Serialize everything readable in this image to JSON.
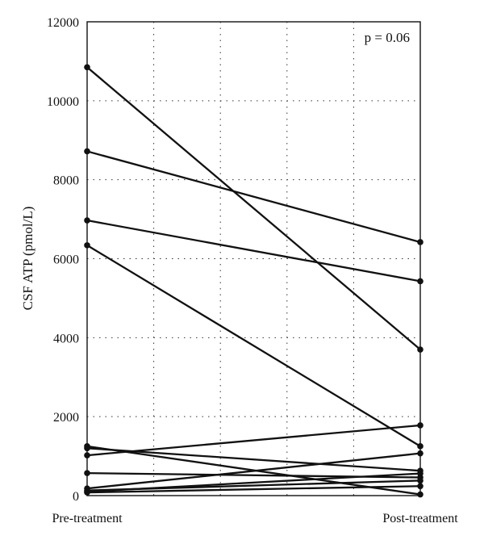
{
  "chart_data": {
    "type": "line",
    "annotation": "p = 0.06",
    "xlabel": "",
    "ylabel": "CSF ATP (pmol/L)",
    "categories": [
      "Pre-treatment",
      "Post-treatment"
    ],
    "ylim": [
      0,
      12000
    ],
    "yticks": [
      0,
      2000,
      4000,
      6000,
      8000,
      10000,
      12000
    ],
    "grid": true,
    "series": [
      {
        "values": [
          10850,
          3700
        ]
      },
      {
        "values": [
          8720,
          6420
        ]
      },
      {
        "values": [
          6970,
          5430
        ]
      },
      {
        "values": [
          6340,
          1250
        ]
      },
      {
        "values": [
          1250,
          30
        ]
      },
      {
        "values": [
          1200,
          630
        ]
      },
      {
        "values": [
          1020,
          1780
        ]
      },
      {
        "values": [
          570,
          460
        ]
      },
      {
        "values": [
          180,
          1070
        ]
      },
      {
        "values": [
          130,
          380
        ]
      },
      {
        "values": [
          100,
          560
        ]
      },
      {
        "values": [
          80,
          240
        ]
      }
    ]
  }
}
